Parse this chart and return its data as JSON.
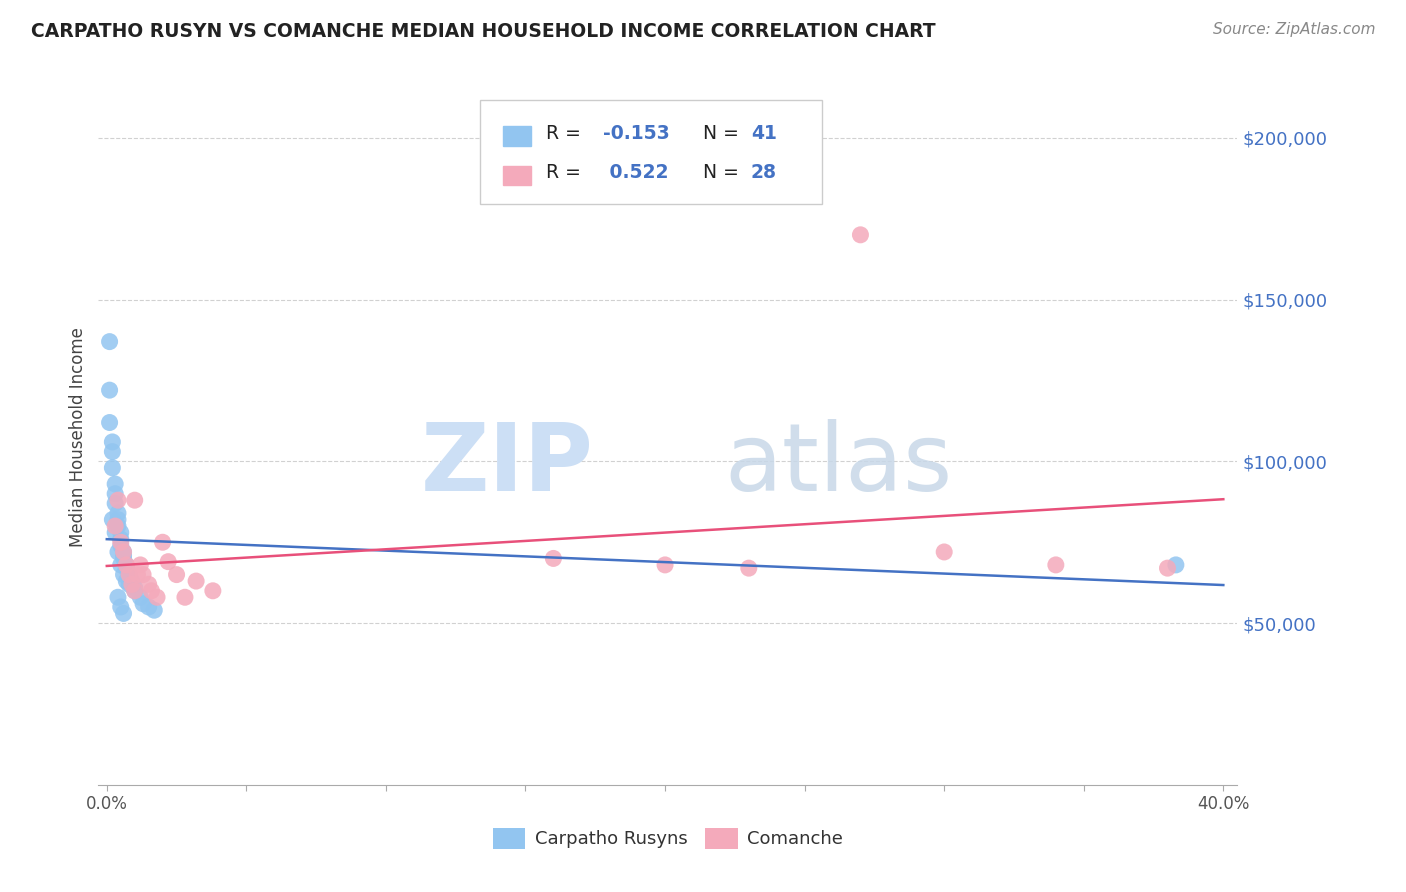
{
  "title": "CARPATHO RUSYN VS COMANCHE MEDIAN HOUSEHOLD INCOME CORRELATION CHART",
  "source": "Source: ZipAtlas.com",
  "ylabel": "Median Household Income",
  "ytick_labels": [
    "$50,000",
    "$100,000",
    "$150,000",
    "$200,000"
  ],
  "ytick_values": [
    50000,
    100000,
    150000,
    200000
  ],
  "ylim": [
    0,
    215000
  ],
  "xlim": [
    -0.003,
    0.405
  ],
  "blue_R": -0.153,
  "blue_N": 41,
  "pink_R": 0.522,
  "pink_N": 28,
  "blue_color": "#92C5F0",
  "pink_color": "#F4AABB",
  "blue_line_color": "#4472C4",
  "pink_line_color": "#E8507A",
  "background_color": "#FFFFFF",
  "watermark_zip": "ZIP",
  "watermark_atlas": "atlas",
  "blue_scatter_x": [
    0.001,
    0.001,
    0.001,
    0.002,
    0.002,
    0.002,
    0.003,
    0.003,
    0.003,
    0.004,
    0.004,
    0.004,
    0.005,
    0.005,
    0.005,
    0.006,
    0.006,
    0.006,
    0.007,
    0.007,
    0.008,
    0.008,
    0.009,
    0.009,
    0.01,
    0.01,
    0.012,
    0.013,
    0.015,
    0.017,
    0.002,
    0.003,
    0.004,
    0.005,
    0.006,
    0.007,
    0.008,
    0.004,
    0.005,
    0.006,
    0.383
  ],
  "blue_scatter_y": [
    137000,
    122000,
    112000,
    106000,
    103000,
    98000,
    93000,
    90000,
    87000,
    84000,
    82000,
    80000,
    78000,
    76000,
    74000,
    72000,
    71000,
    70000,
    68000,
    67000,
    65000,
    64000,
    63000,
    62000,
    61000,
    60000,
    58000,
    56000,
    55000,
    54000,
    82000,
    78000,
    72000,
    68000,
    65000,
    63000,
    62000,
    58000,
    55000,
    53000,
    68000
  ],
  "pink_scatter_x": [
    0.003,
    0.004,
    0.005,
    0.006,
    0.007,
    0.008,
    0.009,
    0.01,
    0.011,
    0.012,
    0.013,
    0.015,
    0.016,
    0.018,
    0.02,
    0.022,
    0.025,
    0.028,
    0.032,
    0.038,
    0.16,
    0.2,
    0.23,
    0.27,
    0.3,
    0.34,
    0.38,
    0.01
  ],
  "pink_scatter_y": [
    80000,
    88000,
    75000,
    72000,
    68000,
    65000,
    62000,
    60000,
    65000,
    68000,
    65000,
    62000,
    60000,
    58000,
    75000,
    69000,
    65000,
    58000,
    63000,
    60000,
    70000,
    68000,
    67000,
    170000,
    72000,
    68000,
    67000,
    88000
  ]
}
